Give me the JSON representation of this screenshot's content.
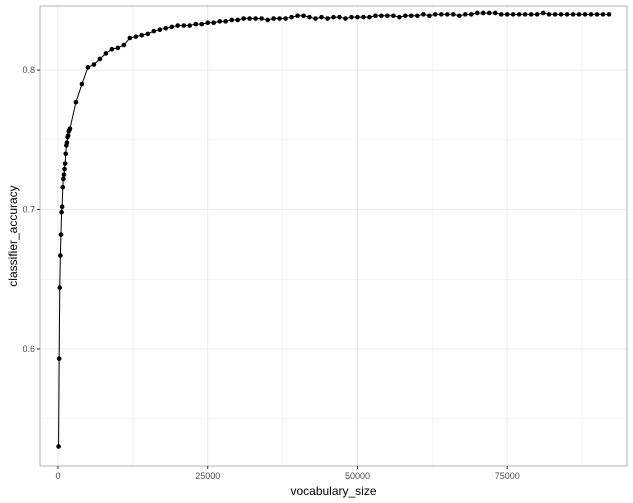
{
  "chart_data": {
    "type": "line",
    "xlabel": "vocabulary_size",
    "ylabel": "classifier_accuracy",
    "xlim": [
      -3000,
      95000
    ],
    "ylim": [
      0.516,
      0.846
    ],
    "x_ticks": [
      0,
      25000,
      50000,
      75000
    ],
    "x_tick_labels": [
      "0",
      "25000",
      "50000",
      "75000"
    ],
    "y_ticks": [
      0.6,
      0.7,
      0.8
    ],
    "y_tick_labels": [
      "0.6",
      "0.7",
      "0.8"
    ],
    "grid": true,
    "legend": "none",
    "colors": {
      "line": "#000000",
      "point": "#000000",
      "grid": "#ebebeb",
      "panel_border": "#b3b3b3"
    },
    "series": [
      {
        "x": [
          100,
          200,
          300,
          400,
          500,
          600,
          700,
          800,
          900,
          1000,
          1100,
          1200,
          1300,
          1400,
          1500,
          1600,
          1700,
          1800,
          1900,
          2000,
          3000,
          4000,
          5000,
          6000,
          7000,
          8000,
          9000,
          10000,
          11000,
          12000,
          13000,
          14000,
          15000,
          16000,
          17000,
          18000,
          19000,
          20000,
          21000,
          22000,
          23000,
          24000,
          25000,
          26000,
          27000,
          28000,
          29000,
          30000,
          31000,
          32000,
          33000,
          34000,
          35000,
          36000,
          37000,
          38000,
          39000,
          40000,
          41000,
          42000,
          43000,
          44000,
          45000,
          46000,
          47000,
          48000,
          49000,
          50000,
          51000,
          52000,
          53000,
          54000,
          55000,
          56000,
          57000,
          58000,
          59000,
          60000,
          61000,
          62000,
          63000,
          64000,
          65000,
          66000,
          67000,
          68000,
          69000,
          70000,
          71000,
          72000,
          73000,
          74000,
          75000,
          76000,
          77000,
          78000,
          79000,
          80000,
          81000,
          82000,
          83000,
          84000,
          85000,
          86000,
          87000,
          88000,
          89000,
          90000,
          91000,
          92000
        ],
        "y": [
          0.53,
          0.593,
          0.644,
          0.667,
          0.682,
          0.698,
          0.702,
          0.716,
          0.722,
          0.725,
          0.729,
          0.733,
          0.74,
          0.746,
          0.748,
          0.752,
          0.753,
          0.756,
          0.757,
          0.758,
          0.777,
          0.79,
          0.802,
          0.804,
          0.808,
          0.812,
          0.815,
          0.816,
          0.818,
          0.823,
          0.824,
          0.825,
          0.826,
          0.828,
          0.829,
          0.83,
          0.831,
          0.832,
          0.832,
          0.832,
          0.833,
          0.833,
          0.834,
          0.834,
          0.835,
          0.835,
          0.836,
          0.836,
          0.837,
          0.837,
          0.837,
          0.837,
          0.836,
          0.837,
          0.837,
          0.837,
          0.838,
          0.839,
          0.839,
          0.838,
          0.837,
          0.838,
          0.837,
          0.838,
          0.838,
          0.837,
          0.838,
          0.838,
          0.838,
          0.838,
          0.839,
          0.839,
          0.839,
          0.839,
          0.838,
          0.839,
          0.839,
          0.839,
          0.84,
          0.839,
          0.84,
          0.84,
          0.84,
          0.84,
          0.839,
          0.84,
          0.84,
          0.841,
          0.841,
          0.841,
          0.841,
          0.84,
          0.84,
          0.84,
          0.84,
          0.84,
          0.84,
          0.84,
          0.841,
          0.84,
          0.84,
          0.84,
          0.84,
          0.84,
          0.84,
          0.84,
          0.84,
          0.84,
          0.84,
          0.84
        ]
      }
    ]
  }
}
